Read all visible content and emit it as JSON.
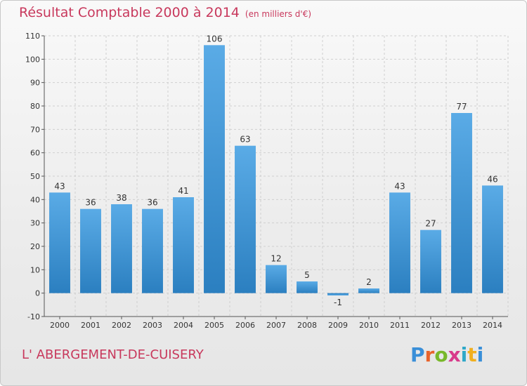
{
  "header": {
    "title": "Résultat Comptable 2000 à 2014",
    "subtitle": "(en milliers d'€)"
  },
  "footer": {
    "commune": "L' ABERGEMENT-DE-CUISERY",
    "logo_letters": [
      "P",
      "r",
      "o",
      "x",
      "i",
      "t",
      "i"
    ],
    "logo_colors": [
      "#3a8fd8",
      "#e8632b",
      "#78b82a",
      "#d83a8a",
      "#2ea8c8",
      "#f0b020",
      "#3a8fd8"
    ]
  },
  "chart_data": {
    "type": "bar",
    "title": "Résultat Comptable 2000 à 2014",
    "subtitle": "(en milliers d'€)",
    "xlabel": "",
    "ylabel": "",
    "categories": [
      "2000",
      "2001",
      "2002",
      "2003",
      "2004",
      "2005",
      "2006",
      "2007",
      "2008",
      "2009",
      "2010",
      "2011",
      "2012",
      "2013",
      "2014"
    ],
    "values": [
      43,
      36,
      38,
      36,
      41,
      106,
      63,
      12,
      5,
      -1,
      2,
      43,
      27,
      77,
      46
    ],
    "ylim": [
      -10,
      110
    ],
    "yticks": [
      -10,
      0,
      10,
      20,
      30,
      40,
      50,
      60,
      70,
      80,
      90,
      100,
      110
    ],
    "grid": true,
    "bar_color_top": "#5aabe6",
    "bar_color_bottom": "#2b7fc0"
  }
}
